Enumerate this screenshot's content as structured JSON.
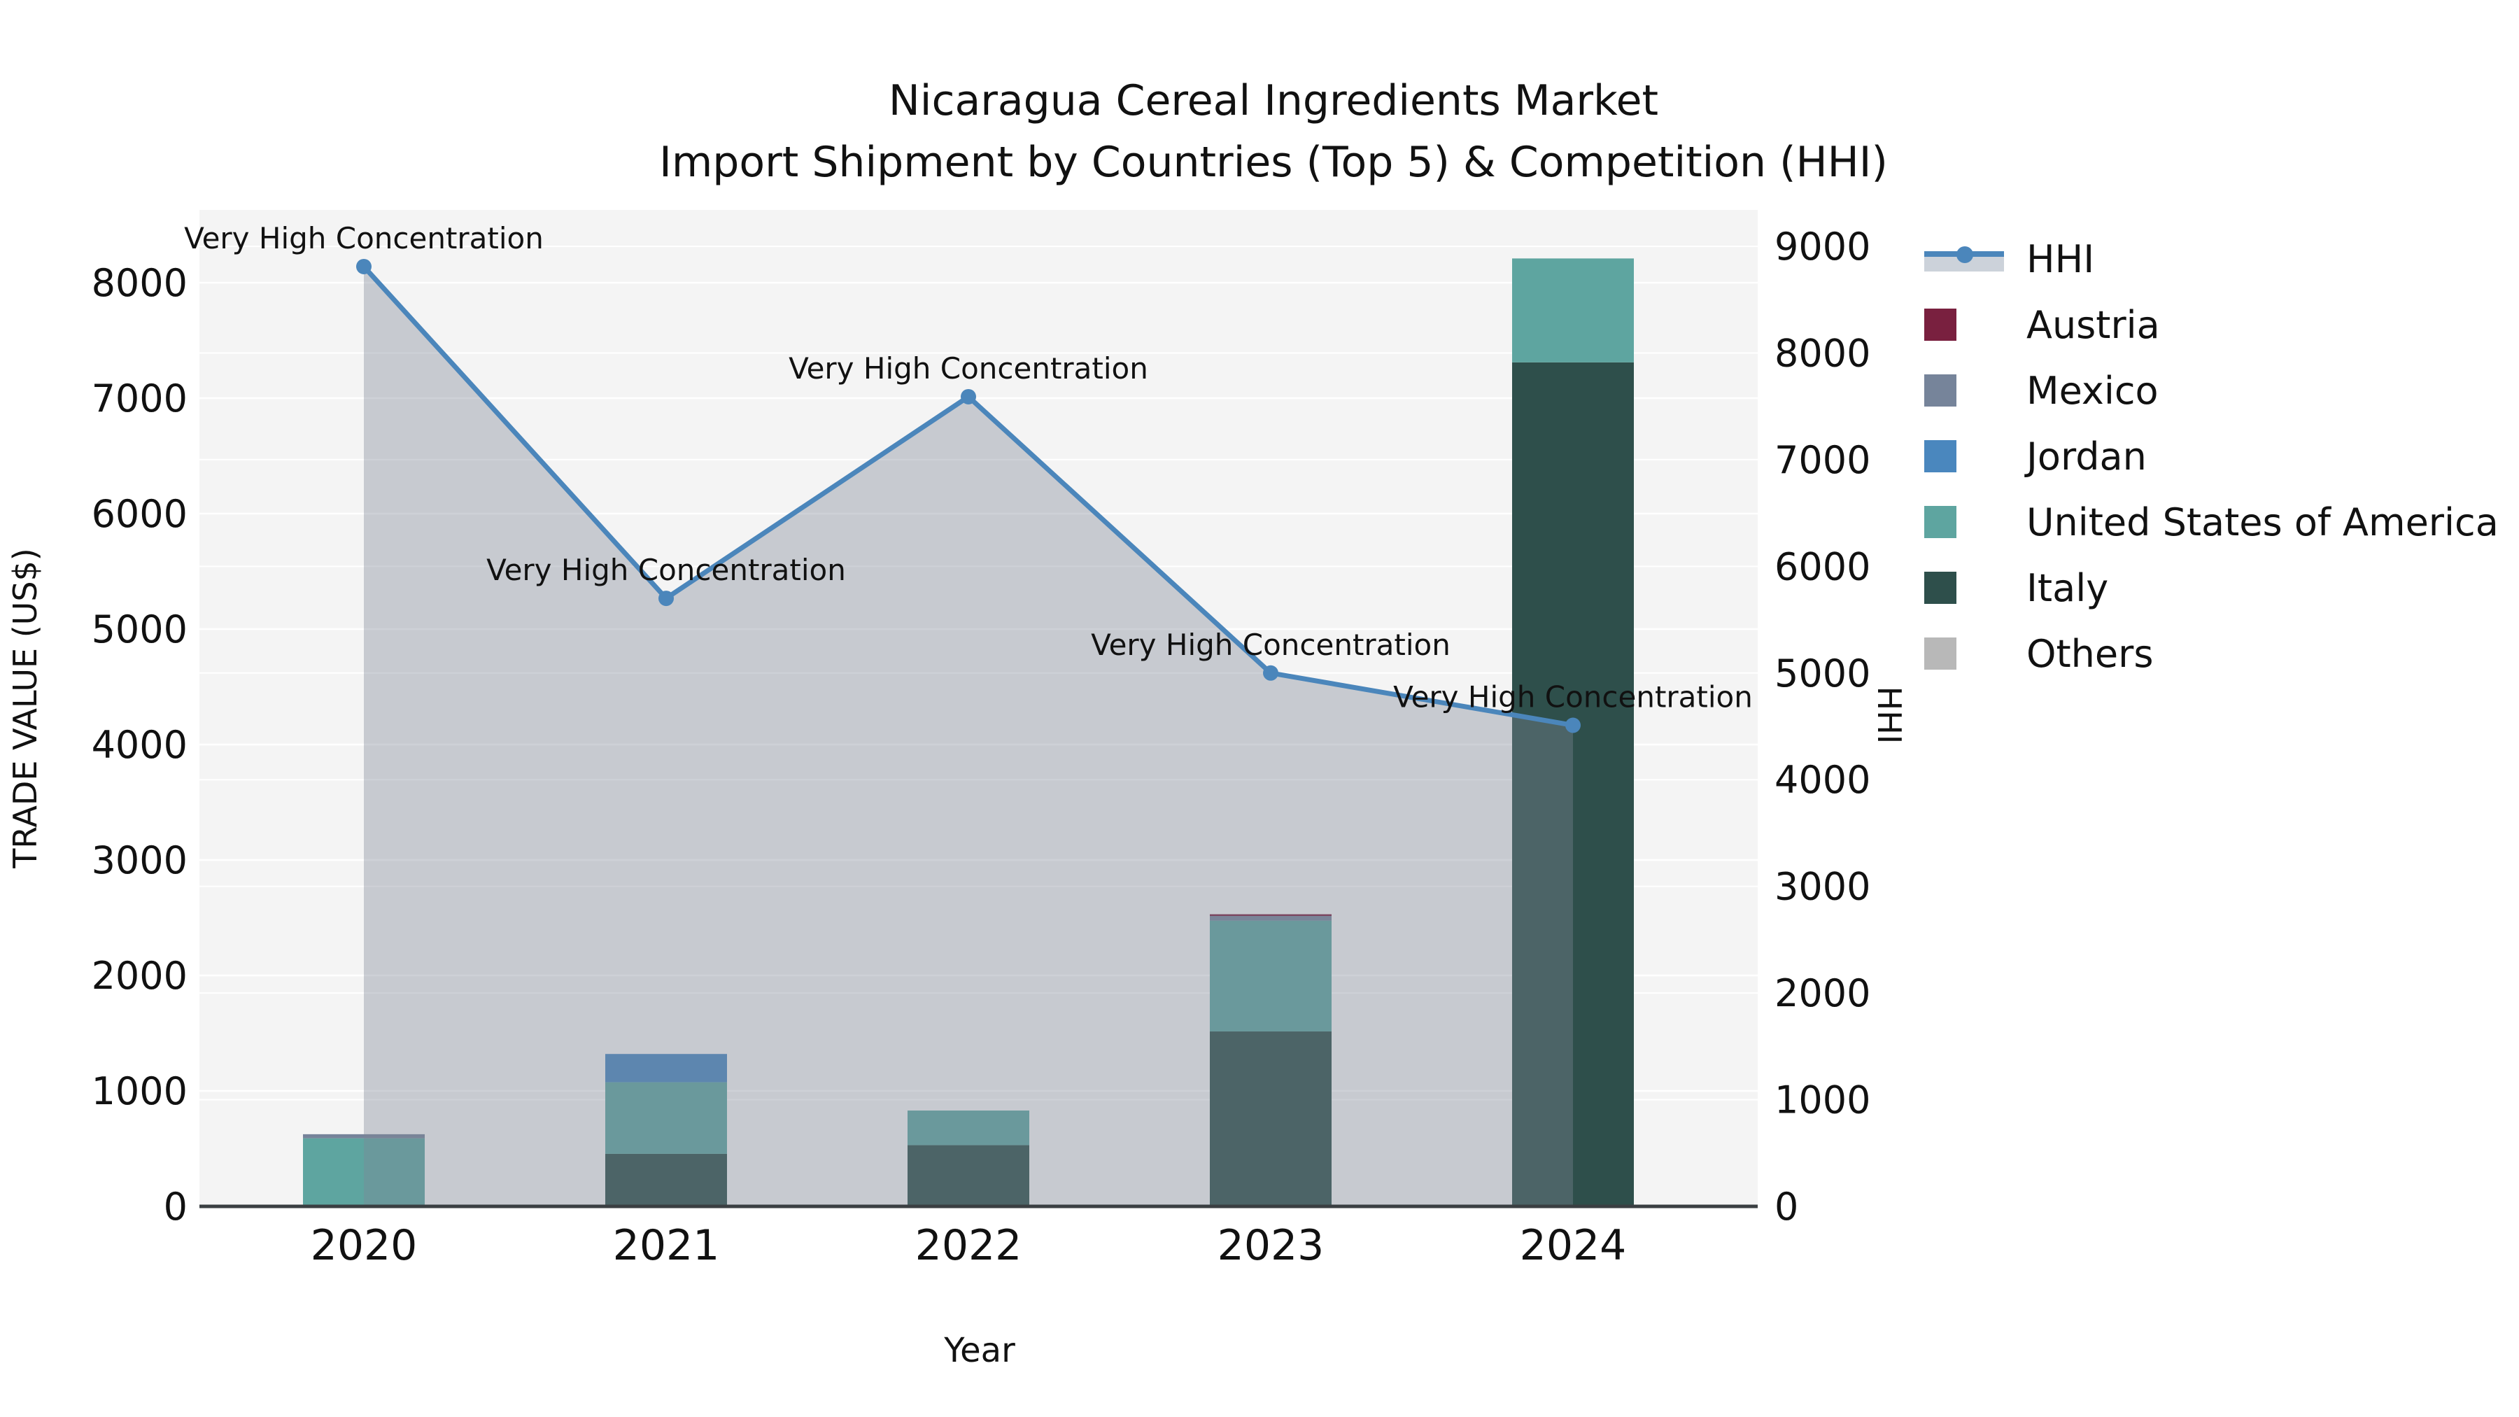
{
  "title": {
    "line1": "Nicaragua Cereal Ingredients Market",
    "line2": "Import Shipment by Countries (Top 5) & Competition (HHI)"
  },
  "chart_data": {
    "type": "bar",
    "subtype": "stacked-bars-with-line-dual-axis",
    "categories": [
      "2020",
      "2021",
      "2022",
      "2023",
      "2024"
    ],
    "bar_series": [
      {
        "name": "Austria",
        "color": "#79203f",
        "values": [
          0,
          0,
          0,
          15,
          0
        ]
      },
      {
        "name": "Mexico",
        "color": "#76849a",
        "values": [
          35,
          0,
          0,
          40,
          0
        ]
      },
      {
        "name": "Jordan",
        "color": "#4a87be",
        "values": [
          0,
          245,
          0,
          0,
          0
        ]
      },
      {
        "name": "United States of America",
        "color": "#5ea5a0",
        "values": [
          590,
          620,
          300,
          960,
          900
        ]
      },
      {
        "name": "Italy",
        "color": "#2e4f4b",
        "values": [
          0,
          455,
          530,
          1515,
          7310
        ]
      },
      {
        "name": "Others",
        "color": "#b8b8b8",
        "values": [
          0,
          0,
          0,
          0,
          0
        ]
      }
    ],
    "stack_order_bottom_to_top": [
      "Italy",
      "United States of America",
      "Jordan",
      "Mexico",
      "Austria",
      "Others"
    ],
    "line_series": {
      "name": "HHI",
      "axis": "right",
      "color": "#4b86bb",
      "values": [
        8810,
        5700,
        7590,
        5000,
        4510
      ]
    },
    "annotations": [
      {
        "category": "2020",
        "text": "Very High Concentration"
      },
      {
        "category": "2021",
        "text": "Very High Concentration"
      },
      {
        "category": "2022",
        "text": "Very High Concentration"
      },
      {
        "category": "2023",
        "text": "Very High Concentration"
      },
      {
        "category": "2024",
        "text": "Very High Concentration"
      }
    ],
    "left_axis": {
      "label": "TRADE VALUE (US$)",
      "ticks": [
        0,
        1000,
        2000,
        3000,
        4000,
        5000,
        6000,
        7000,
        8000
      ],
      "range": [
        0,
        8630
      ]
    },
    "right_axis": {
      "label": "HHI",
      "ticks": [
        0,
        1000,
        2000,
        3000,
        4000,
        5000,
        6000,
        7000,
        8000,
        9000
      ],
      "range": [
        0,
        9000
      ]
    },
    "x_axis": {
      "label": "Year"
    },
    "legend_position": "right",
    "grid": true,
    "colors": {
      "plot_background": "#f4f4f4",
      "gridline": "#ffffff",
      "axis_line": "#3a3f42",
      "area_fill": "rgba(125,135,150,0.38)",
      "legend_area_band": "#ccd2da",
      "text": "#111111"
    }
  }
}
